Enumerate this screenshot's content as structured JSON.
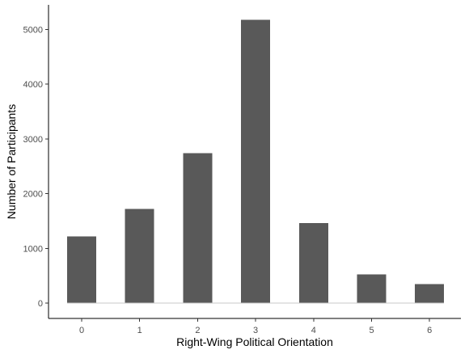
{
  "chart_data": {
    "type": "bar",
    "title": "",
    "xlabel": "Right-Wing Political Orientation",
    "ylabel": "Number of Participants",
    "categories": [
      "0",
      "1",
      "2",
      "3",
      "4",
      "5",
      "6"
    ],
    "values": [
      1220,
      1720,
      2740,
      5180,
      1460,
      525,
      350
    ],
    "yticks": [
      0,
      1000,
      2000,
      3000,
      4000,
      5000
    ],
    "ylim": [
      -280,
      5450
    ],
    "grid": false,
    "legend": "none",
    "colors": {
      "bar": "#595959",
      "axis": "#000000",
      "tick_label": "#4d4d4d",
      "background": "#ffffff"
    }
  }
}
